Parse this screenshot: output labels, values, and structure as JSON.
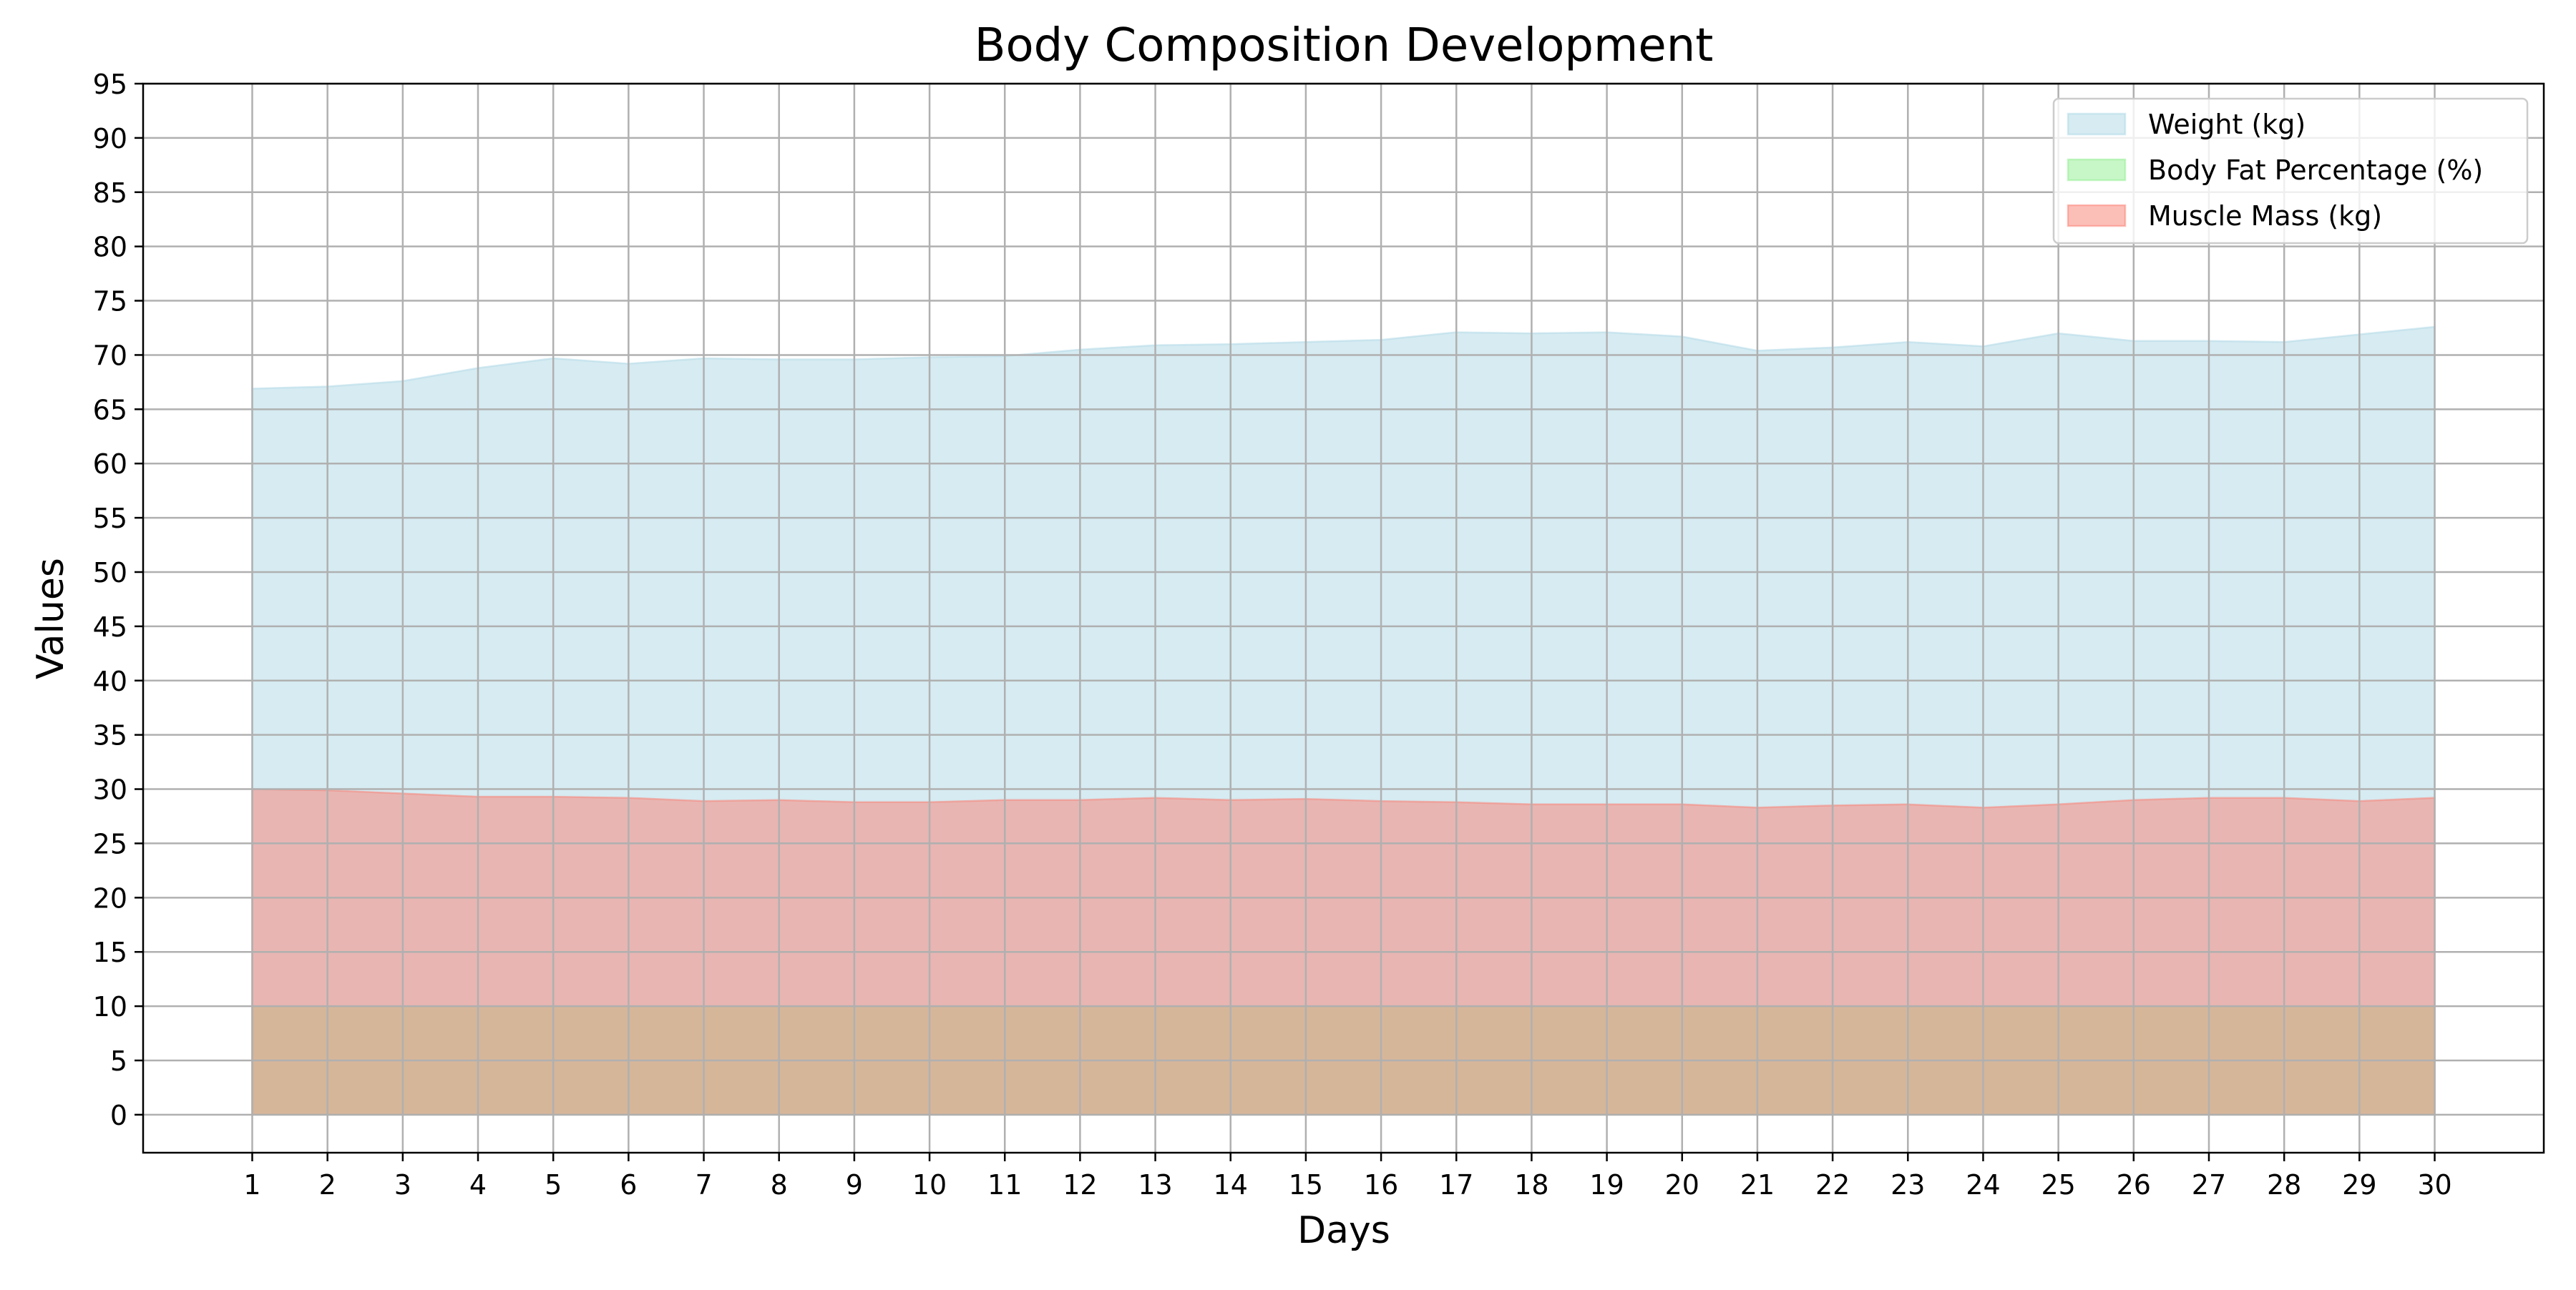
{
  "chart_data": {
    "type": "area",
    "title": "Body Composition Development",
    "xlabel": "Days",
    "ylabel": "Values",
    "x": [
      1,
      2,
      3,
      4,
      5,
      6,
      7,
      8,
      9,
      10,
      11,
      12,
      13,
      14,
      15,
      16,
      17,
      18,
      19,
      20,
      21,
      22,
      23,
      24,
      25,
      26,
      27,
      28,
      29,
      30
    ],
    "xlim": [
      -0.45,
      31.45
    ],
    "ylim": [
      -3.5,
      95
    ],
    "yticks": [
      0,
      5,
      10,
      15,
      20,
      25,
      30,
      35,
      40,
      45,
      50,
      55,
      60,
      65,
      70,
      75,
      80,
      85,
      90,
      95
    ],
    "grid": true,
    "legend_position": "top-right",
    "stacked": false,
    "series": [
      {
        "name": "Weight (kg)",
        "color": "#add8e6",
        "values": [
          66.9,
          67.1,
          67.6,
          68.8,
          69.7,
          69.2,
          69.7,
          69.6,
          69.6,
          69.8,
          69.9,
          70.5,
          70.9,
          71.0,
          71.2,
          71.4,
          72.1,
          72.0,
          72.1,
          71.7,
          70.4,
          70.7,
          71.2,
          70.8,
          72.0,
          71.3,
          71.3,
          71.2,
          71.9,
          72.6
        ]
      },
      {
        "name": "Body Fat Percentage (%)",
        "color": "#90ee90",
        "values": [
          10.0,
          10.0,
          10.0,
          10.0,
          10.0,
          10.0,
          10.0,
          10.0,
          10.0,
          10.0,
          10.0,
          10.0,
          10.0,
          10.0,
          10.0,
          10.0,
          10.0,
          10.0,
          10.0,
          10.0,
          10.0,
          10.0,
          10.0,
          10.0,
          10.0,
          10.0,
          10.0,
          10.0,
          10.0,
          10.0
        ]
      },
      {
        "name": "Muscle Mass (kg)",
        "color": "#fa8072",
        "values": [
          30.0,
          29.9,
          29.6,
          29.3,
          29.3,
          29.2,
          28.9,
          29.0,
          28.8,
          28.8,
          29.0,
          29.0,
          29.2,
          29.0,
          29.1,
          28.9,
          28.8,
          28.6,
          28.6,
          28.6,
          28.3,
          28.5,
          28.6,
          28.3,
          28.6,
          29.0,
          29.2,
          29.2,
          28.9,
          29.2
        ]
      }
    ]
  }
}
